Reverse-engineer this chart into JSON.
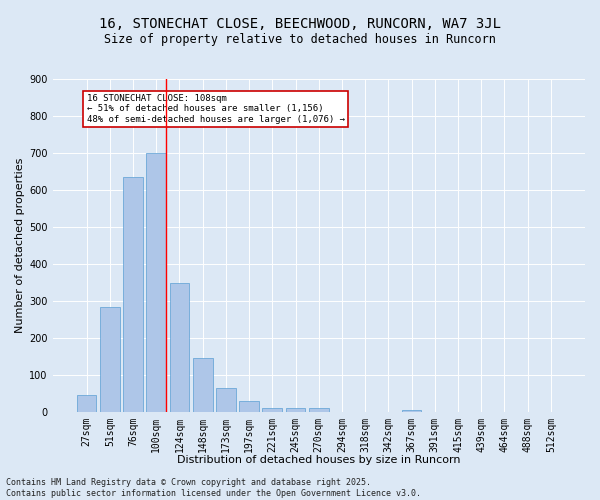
{
  "title": "16, STONECHAT CLOSE, BEECHWOOD, RUNCORN, WA7 3JL",
  "subtitle": "Size of property relative to detached houses in Runcorn",
  "xlabel": "Distribution of detached houses by size in Runcorn",
  "ylabel": "Number of detached properties",
  "categories": [
    "27sqm",
    "51sqm",
    "76sqm",
    "100sqm",
    "124sqm",
    "148sqm",
    "173sqm",
    "197sqm",
    "221sqm",
    "245sqm",
    "270sqm",
    "294sqm",
    "318sqm",
    "342sqm",
    "367sqm",
    "391sqm",
    "415sqm",
    "439sqm",
    "464sqm",
    "488sqm",
    "512sqm"
  ],
  "values": [
    45,
    285,
    635,
    700,
    350,
    145,
    65,
    30,
    10,
    10,
    10,
    0,
    0,
    0,
    5,
    0,
    0,
    0,
    0,
    0,
    0
  ],
  "bar_color": "#aec6e8",
  "bar_edge_color": "#5a9fd4",
  "annotation_text": "16 STONECHAT CLOSE: 108sqm\n← 51% of detached houses are smaller (1,156)\n48% of semi-detached houses are larger (1,076) →",
  "vline_index": 3,
  "annotation_box_edge": "#cc0000",
  "footer_text": "Contains HM Land Registry data © Crown copyright and database right 2025.\nContains public sector information licensed under the Open Government Licence v3.0.",
  "background_color": "#dce8f5",
  "ylim": [
    0,
    900
  ],
  "yticks": [
    0,
    100,
    200,
    300,
    400,
    500,
    600,
    700,
    800,
    900
  ],
  "grid_color": "#ffffff",
  "title_fontsize": 10,
  "subtitle_fontsize": 8.5,
  "axis_label_fontsize": 8,
  "tick_fontsize": 7,
  "footer_fontsize": 6
}
